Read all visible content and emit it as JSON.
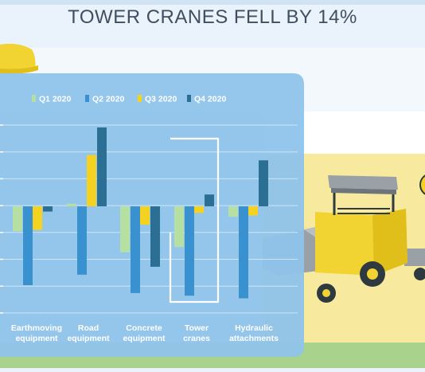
{
  "headline": "TOWER CRANES FELL BY 14%",
  "colors": {
    "sky_top": "#eaf3fb",
    "sky_band": "#f3f8fd",
    "field": "#f7ea9e",
    "grass": "#a9d38c",
    "panel": "#8fc3ea",
    "q1": "#b6e0a1",
    "q2": "#3a91cf",
    "q3": "#f5d21f",
    "q4": "#2b6f95",
    "highlight": "#ffffff",
    "machine_yellow": "#f1d431",
    "machine_dark": "#2f3a40"
  },
  "icons": [
    "hard-hat-icon",
    "paver-machine-icon",
    "sun-icon"
  ],
  "chart_data": {
    "type": "bar",
    "title": "",
    "categories": [
      [
        "Earthmoving",
        "equipment"
      ],
      [
        "Road",
        "equipment"
      ],
      [
        "Concrete",
        "equipment"
      ],
      [
        "Tower",
        "cranes"
      ],
      [
        "Hydraulic",
        "attachments"
      ]
    ],
    "series": [
      {
        "name": "Q1 2020",
        "color": "#b6e0a1",
        "values": [
          -0.19,
          0.02,
          -0.35,
          -0.31,
          -0.08
        ]
      },
      {
        "name": "Q2 2020",
        "color": "#3a91cf",
        "values": [
          -0.6,
          -0.52,
          -0.66,
          -0.68,
          -0.7
        ]
      },
      {
        "name": "Q3 2020",
        "color": "#f5d21f",
        "values": [
          -0.18,
          0.39,
          -0.14,
          -0.05,
          -0.07
        ]
      },
      {
        "name": "Q4 2020",
        "color": "#2b6f95",
        "values": [
          -0.04,
          0.6,
          -0.46,
          0.09,
          0.35
        ]
      }
    ],
    "highlight_category": 3,
    "ylim": [
      -0.8,
      0.7
    ],
    "grid": true,
    "legend_position": "top"
  }
}
